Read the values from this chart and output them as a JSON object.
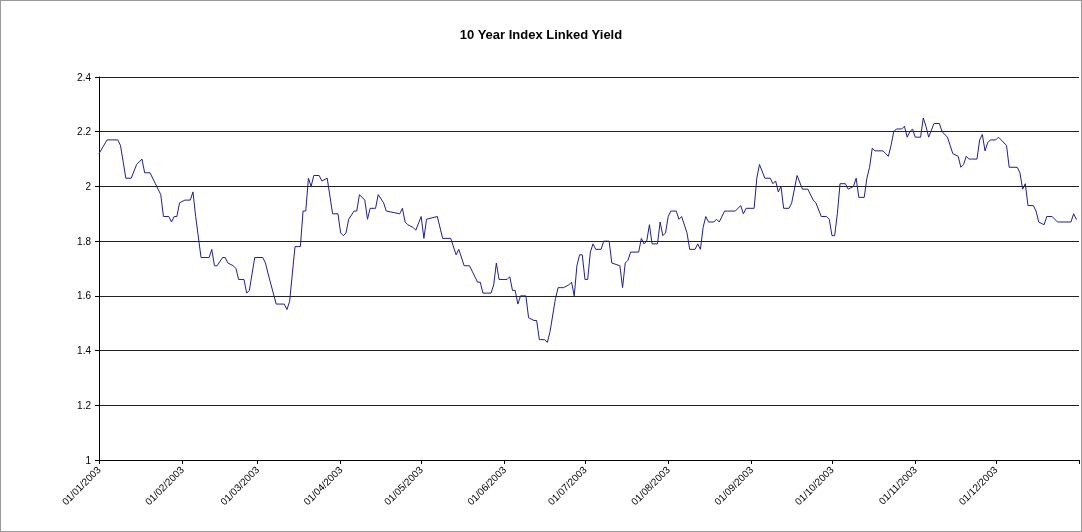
{
  "chart_data": {
    "type": "line",
    "title": "10 Year Index Linked Yield",
    "x": [
      "2003-01-01",
      "2003-01-04",
      "2003-01-08",
      "2003-01-09",
      "2003-01-11",
      "2003-01-13",
      "2003-01-15",
      "2003-01-17",
      "2003-01-18",
      "2003-01-20",
      "2003-01-22",
      "2003-01-23",
      "2003-01-24",
      "2003-01-25",
      "2003-01-27",
      "2003-01-28",
      "2003-01-29",
      "2003-01-30",
      "2003-01-31",
      "2003-02-02",
      "2003-02-04",
      "2003-02-05",
      "2003-02-06",
      "2003-02-08",
      "2003-02-11",
      "2003-02-12",
      "2003-02-13",
      "2003-02-14",
      "2003-02-16",
      "2003-02-17",
      "2003-02-18",
      "2003-02-20",
      "2003-02-21",
      "2003-02-22",
      "2003-02-24",
      "2003-02-25",
      "2003-02-26",
      "2003-02-28",
      "2003-03-03",
      "2003-03-04",
      "2003-03-05",
      "2003-03-08",
      "2003-03-11",
      "2003-03-12",
      "2003-03-13",
      "2003-03-15",
      "2003-03-17",
      "2003-03-18",
      "2003-03-19",
      "2003-03-20",
      "2003-03-21",
      "2003-03-22",
      "2003-03-24",
      "2003-03-25",
      "2003-03-27",
      "2003-03-29",
      "2003-03-31",
      "2003-04-01",
      "2003-04-02",
      "2003-04-03",
      "2003-04-04",
      "2003-04-06",
      "2003-04-07",
      "2003-04-08",
      "2003-04-10",
      "2003-04-11",
      "2003-04-12",
      "2003-04-14",
      "2003-04-15",
      "2003-04-17",
      "2003-04-18",
      "2003-04-23",
      "2003-04-24",
      "2003-04-25",
      "2003-04-26",
      "2003-04-28",
      "2003-04-29",
      "2003-05-01",
      "2003-05-02",
      "2003-05-03",
      "2003-05-07",
      "2003-05-09",
      "2003-05-12",
      "2003-05-14",
      "2003-05-15",
      "2003-05-17",
      "2003-05-19",
      "2003-05-20",
      "2003-05-22",
      "2003-05-23",
      "2003-05-24",
      "2003-05-27",
      "2003-05-28",
      "2003-05-29",
      "2003-05-30",
      "2003-06-02",
      "2003-06-03",
      "2003-06-04",
      "2003-06-05",
      "2003-06-06",
      "2003-06-07",
      "2003-06-09",
      "2003-06-10",
      "2003-06-12",
      "2003-06-13",
      "2003-06-14",
      "2003-06-16",
      "2003-06-17",
      "2003-06-18",
      "2003-06-20",
      "2003-06-21",
      "2003-06-22",
      "2003-06-23",
      "2003-06-25",
      "2003-06-26",
      "2003-06-27",
      "2003-06-28",
      "2003-06-29",
      "2003-06-30",
      "2003-07-01",
      "2003-07-02",
      "2003-07-03",
      "2003-07-04",
      "2003-07-05",
      "2003-07-07",
      "2003-07-08",
      "2003-07-10",
      "2003-07-11",
      "2003-07-14",
      "2003-07-15",
      "2003-07-16",
      "2003-07-17",
      "2003-07-18",
      "2003-07-21",
      "2003-07-22",
      "2003-07-23",
      "2003-07-24",
      "2003-07-25",
      "2003-07-26",
      "2003-07-28",
      "2003-07-29",
      "2003-07-30",
      "2003-07-31",
      "2003-08-01",
      "2003-08-02",
      "2003-08-04",
      "2003-08-05",
      "2003-08-06",
      "2003-08-08",
      "2003-08-09",
      "2003-08-11",
      "2003-08-12",
      "2003-08-13",
      "2003-08-14",
      "2003-08-15",
      "2003-08-16",
      "2003-08-18",
      "2003-08-19",
      "2003-08-20",
      "2003-08-22",
      "2003-08-23",
      "2003-08-26",
      "2003-08-28",
      "2003-08-29",
      "2003-08-30",
      "2003-09-02",
      "2003-09-03",
      "2003-09-04",
      "2003-09-06",
      "2003-09-08",
      "2003-09-09",
      "2003-09-10",
      "2003-09-11",
      "2003-09-12",
      "2003-09-13",
      "2003-09-15",
      "2003-09-16",
      "2003-09-18",
      "2003-09-20",
      "2003-09-22",
      "2003-09-24",
      "2003-09-25",
      "2003-09-27",
      "2003-09-29",
      "2003-09-30",
      "2003-10-01",
      "2003-10-02",
      "2003-10-03",
      "2003-10-04",
      "2003-10-06",
      "2003-10-07",
      "2003-10-09",
      "2003-10-10",
      "2003-10-11",
      "2003-10-13",
      "2003-10-14",
      "2003-10-15",
      "2003-10-16",
      "2003-10-17",
      "2003-10-20",
      "2003-10-21",
      "2003-10-22",
      "2003-10-23",
      "2003-10-24",
      "2003-10-25",
      "2003-10-27",
      "2003-10-28",
      "2003-10-29",
      "2003-10-30",
      "2003-10-31",
      "2003-11-01",
      "2003-11-03",
      "2003-11-04",
      "2003-11-05",
      "2003-11-06",
      "2003-11-08",
      "2003-11-10",
      "2003-11-11",
      "2003-11-13",
      "2003-11-15",
      "2003-11-17",
      "2003-11-18",
      "2003-11-19",
      "2003-11-20",
      "2003-11-21",
      "2003-11-22",
      "2003-11-24",
      "2003-11-25",
      "2003-11-26",
      "2003-11-27",
      "2003-11-28",
      "2003-11-29",
      "2003-12-01",
      "2003-12-02",
      "2003-12-03",
      "2003-12-05",
      "2003-12-06",
      "2003-12-09",
      "2003-12-10",
      "2003-12-11",
      "2003-12-12",
      "2003-12-13",
      "2003-12-15",
      "2003-12-16",
      "2003-12-17",
      "2003-12-19",
      "2003-12-20",
      "2003-12-22",
      "2003-12-24",
      "2003-12-29",
      "2003-12-30",
      "2003-12-31"
    ],
    "series": [
      {
        "color": "#1f1f8f",
        "values": [
          2.12,
          2.17,
          2.17,
          2.15,
          2.03,
          2.03,
          2.08,
          2.1,
          2.05,
          2.05,
          2.01,
          1.99,
          1.97,
          1.89,
          1.89,
          1.87,
          1.89,
          1.89,
          1.94,
          1.95,
          1.95,
          1.98,
          1.89,
          1.74,
          1.74,
          1.77,
          1.71,
          1.71,
          1.74,
          1.74,
          1.72,
          1.71,
          1.7,
          1.66,
          1.66,
          1.61,
          1.62,
          1.74,
          1.74,
          1.72,
          1.68,
          1.57,
          1.57,
          1.55,
          1.58,
          1.78,
          1.78,
          1.91,
          1.91,
          2.03,
          2.0,
          2.04,
          2.04,
          2.02,
          2.03,
          1.9,
          1.9,
          1.83,
          1.82,
          1.83,
          1.88,
          1.91,
          1.91,
          1.97,
          1.95,
          1.88,
          1.92,
          1.92,
          1.97,
          1.94,
          1.91,
          1.9,
          1.92,
          1.87,
          1.86,
          1.85,
          1.84,
          1.89,
          1.81,
          1.88,
          1.89,
          1.81,
          1.81,
          1.75,
          1.77,
          1.71,
          1.71,
          1.69,
          1.65,
          1.65,
          1.61,
          1.61,
          1.64,
          1.72,
          1.66,
          1.66,
          1.67,
          1.62,
          1.62,
          1.57,
          1.6,
          1.6,
          1.52,
          1.51,
          1.51,
          1.44,
          1.44,
          1.43,
          1.47,
          1.59,
          1.63,
          1.63,
          1.63,
          1.64,
          1.65,
          1.6,
          1.71,
          1.75,
          1.75,
          1.66,
          1.66,
          1.76,
          1.79,
          1.77,
          1.77,
          1.8,
          1.8,
          1.72,
          1.71,
          1.63,
          1.72,
          1.73,
          1.76,
          1.76,
          1.81,
          1.79,
          1.8,
          1.86,
          1.79,
          1.79,
          1.87,
          1.82,
          1.83,
          1.89,
          1.91,
          1.91,
          1.88,
          1.89,
          1.83,
          1.77,
          1.77,
          1.79,
          1.77,
          1.85,
          1.89,
          1.87,
          1.87,
          1.88,
          1.87,
          1.91,
          1.91,
          1.91,
          1.93,
          1.9,
          1.92,
          1.92,
          2.03,
          2.08,
          2.03,
          2.03,
          2.01,
          2.02,
          1.98,
          2.0,
          1.92,
          1.92,
          1.94,
          2.04,
          1.99,
          1.99,
          1.95,
          1.94,
          1.89,
          1.89,
          1.88,
          1.82,
          1.82,
          1.9,
          2.01,
          2.01,
          1.99,
          2.0,
          2.03,
          1.96,
          1.96,
          2.03,
          2.07,
          2.14,
          2.13,
          2.13,
          2.12,
          2.11,
          2.15,
          2.2,
          2.21,
          2.21,
          2.22,
          2.18,
          2.2,
          2.21,
          2.18,
          2.18,
          2.25,
          2.22,
          2.18,
          2.23,
          2.23,
          2.2,
          2.18,
          2.12,
          2.11,
          2.07,
          2.08,
          2.11,
          2.1,
          2.1,
          2.1,
          2.17,
          2.19,
          2.13,
          2.16,
          2.17,
          2.17,
          2.18,
          2.17,
          2.15,
          2.07,
          2.07,
          2.05,
          1.99,
          2.01,
          1.93,
          1.93,
          1.91,
          1.87,
          1.86,
          1.89,
          1.89,
          1.87,
          1.87,
          1.9,
          1.88
        ]
      }
    ],
    "xlim": [
      "2003-01-01",
      "2004-01-01"
    ],
    "xticks": [
      {
        "value": "2003-01-01",
        "label": "01/01/2003"
      },
      {
        "value": "2003-02-01",
        "label": "01/02/2003"
      },
      {
        "value": "2003-03-01",
        "label": "01/03/2003"
      },
      {
        "value": "2003-04-01",
        "label": "01/04/2003"
      },
      {
        "value": "2003-05-01",
        "label": "01/05/2003"
      },
      {
        "value": "2003-06-01",
        "label": "01/06/2003"
      },
      {
        "value": "2003-07-01",
        "label": "01/07/2003"
      },
      {
        "value": "2003-08-01",
        "label": "01/08/2003"
      },
      {
        "value": "2003-09-01",
        "label": "01/09/2003"
      },
      {
        "value": "2003-10-01",
        "label": "01/10/2003"
      },
      {
        "value": "2003-11-01",
        "label": "01/11/2003"
      },
      {
        "value": "2003-12-01",
        "label": "01/12/2003"
      },
      {
        "value": "2004-01-01",
        "label": null
      }
    ],
    "ylim": [
      1,
      2.4
    ],
    "yticks": [
      1,
      1.2,
      1.4,
      1.6,
      1.8,
      2,
      2.2,
      2.4
    ],
    "grid": "y",
    "marker": "none",
    "line_style": "solid"
  }
}
